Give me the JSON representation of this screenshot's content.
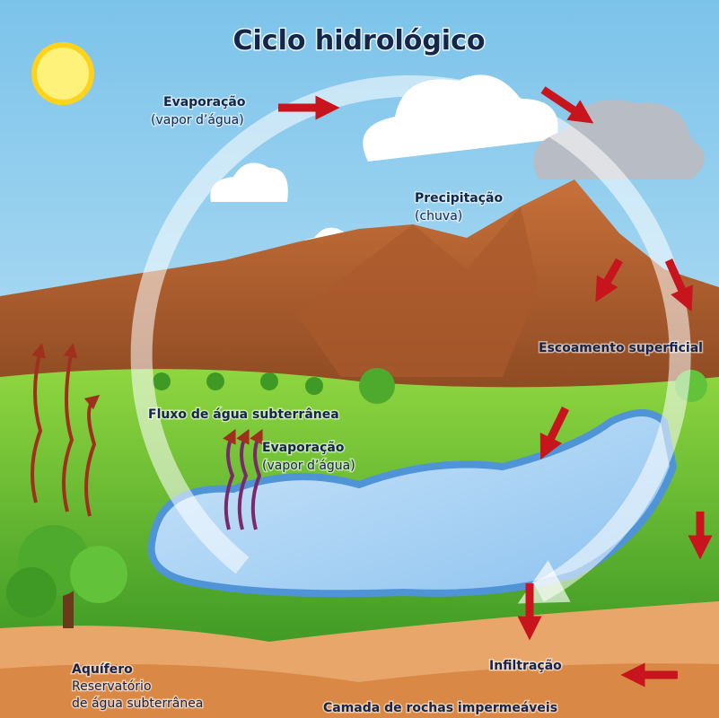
{
  "title": "Ciclo hidrológico",
  "labels": {
    "evaporation_top": [
      "Evaporação",
      "(vapor d’água)"
    ],
    "precipitation": [
      "Precipitação",
      "(chuva)"
    ],
    "runoff": "Escoamento superficial",
    "groundwater_flow": "Fluxo de água subterrânea",
    "evaporation_lake": [
      "Evaporação",
      "(vapor d’água)"
    ],
    "aquifer": [
      "Aquífero",
      "Reservatório",
      "de água subterrânea"
    ],
    "infiltration": "Infiltração",
    "bedrock": "Camada de rochas impermeáveis"
  }
}
